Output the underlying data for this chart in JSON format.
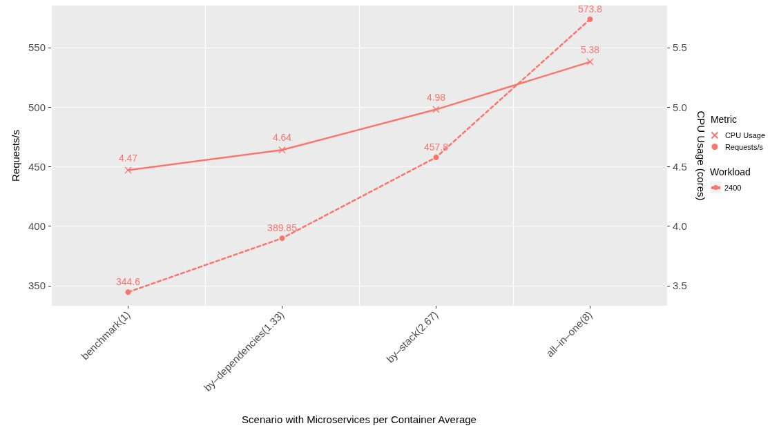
{
  "chart_data": {
    "type": "line",
    "categories": [
      "benchmark(1)",
      "by–dependencies(1.33)",
      "by–stack(2.67)",
      "all–in–one(8)"
    ],
    "xlabel": "Scenario with Microservices per Container Average",
    "ylabel": "Requests/s",
    "y2label": "CPU Usage (cores)",
    "legend_title": "Metric",
    "annotations": [
      "Workload",
      "2400"
    ],
    "series": [
      {
        "name": "CPU Usage",
        "color": "#f8766d",
        "axis": "y2",
        "line_style": "solid",
        "marker": "cross",
        "values": [
          4.47,
          4.64,
          4.98,
          5.38
        ]
      },
      {
        "name": "Requests/s",
        "color": "#f8766d",
        "line_style": "dashed",
        "marker": "circle",
        "values": [
          344.6,
          389.85,
          457.8,
          573.8
        ]
      }
    ],
    "ylim": [
      333.1,
      585.3
    ],
    "yticks": [
      350,
      400,
      450,
      500,
      550
    ],
    "y2lim": [
      3.331,
      5.853
    ],
    "y2ticks": [
      3.5,
      {
        "value": 4,
        "label": "4.0"
      },
      4.5,
      {
        "value": 5,
        "label": "5.0"
      },
      5.5
    ],
    "data_labels": true,
    "grid": true,
    "legend": "right"
  }
}
